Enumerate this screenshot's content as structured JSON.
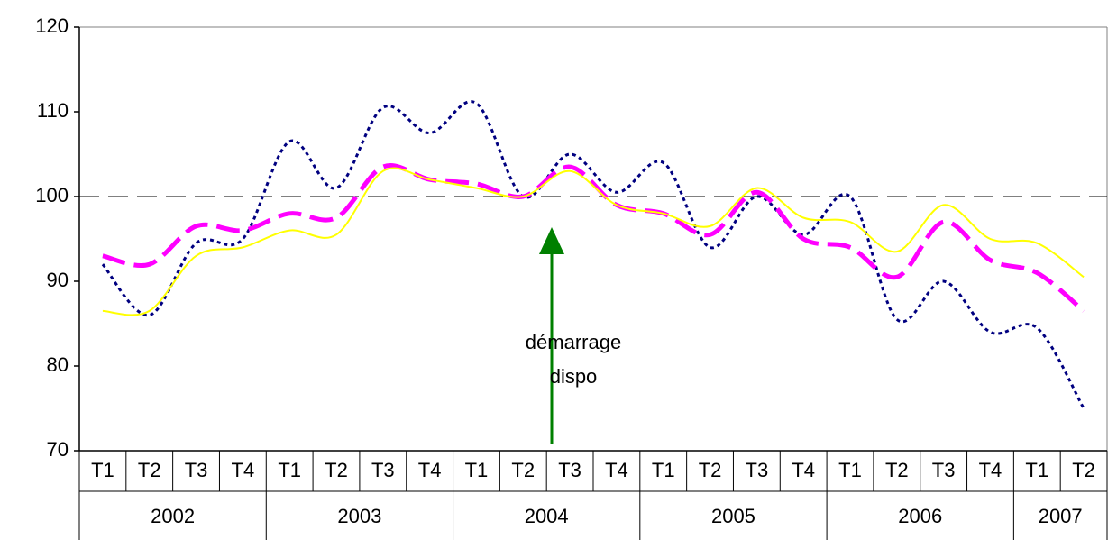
{
  "chart_data": {
    "type": "line",
    "categories": [
      "T1",
      "T2",
      "T3",
      "T4",
      "T1",
      "T2",
      "T3",
      "T4",
      "T1",
      "T2",
      "T3",
      "T4",
      "T1",
      "T2",
      "T3",
      "T4",
      "T1",
      "T2",
      "T3",
      "T4",
      "T1",
      "T2"
    ],
    "year_groups": [
      {
        "label": "2002",
        "count": 4
      },
      {
        "label": "2003",
        "count": 4
      },
      {
        "label": "2004",
        "count": 4
      },
      {
        "label": "2005",
        "count": 4
      },
      {
        "label": "2006",
        "count": 4
      },
      {
        "label": "2007",
        "count": 2
      }
    ],
    "series": [
      {
        "color": "#000080",
        "style": "dotted",
        "values": [
          92,
          86,
          94.5,
          95,
          106.5,
          101,
          110.5,
          107.5,
          111,
          100,
          105,
          100.5,
          104,
          94,
          100,
          95.5,
          100,
          85.5,
          90,
          84,
          84.5,
          75
        ]
      },
      {
        "color": "#ff00ff",
        "style": "dashed",
        "values": [
          93,
          92,
          96.5,
          96,
          98,
          97.5,
          103.5,
          102,
          101.5,
          100,
          103.5,
          99,
          98,
          95.5,
          100.5,
          95,
          94,
          90.5,
          97,
          92.5,
          91,
          86.5
        ]
      },
      {
        "color": "#ffff00",
        "style": "solid",
        "values": [
          86.5,
          86.5,
          93,
          94,
          96,
          95.5,
          103,
          102,
          101,
          100,
          103,
          99,
          98,
          96.5,
          101,
          97.5,
          97,
          93.5,
          99,
          95,
          94.5,
          90.5
        ]
      }
    ],
    "reference_line": 100,
    "annotation": "démarrage dispo",
    "ylim": [
      70,
      120
    ],
    "yticks": [
      70,
      80,
      90,
      100,
      110,
      120
    ]
  }
}
